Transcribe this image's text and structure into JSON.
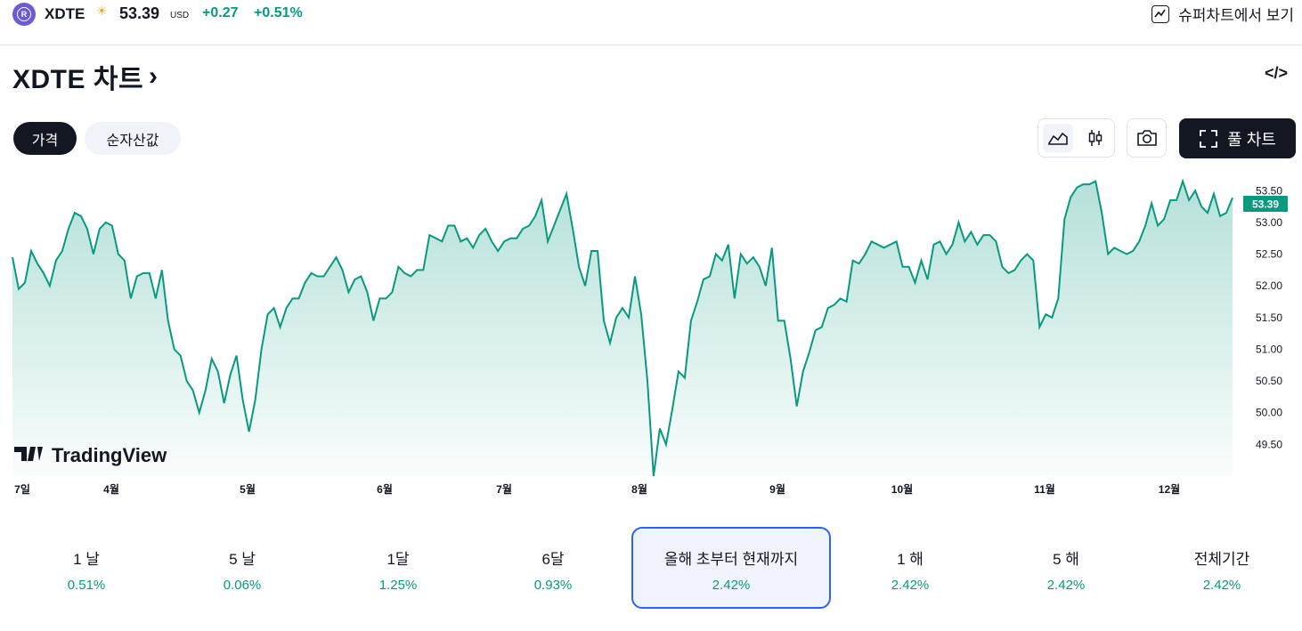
{
  "header": {
    "logo_letter": "R",
    "ticker": "XDTE",
    "session_icon": "sun-icon",
    "price": "53.39",
    "currency": "USD",
    "change": "+0.27",
    "change_pct": "+0.51%",
    "supercharts_label": "슈퍼차트에서 보기"
  },
  "title": {
    "text": "XDTE 차트",
    "chevron": "›",
    "embed_label": "</>"
  },
  "tabs": [
    {
      "label": "가격",
      "active": true
    },
    {
      "label": "순자산값",
      "active": false
    }
  ],
  "toolbar": {
    "fullchart_label": "풀 차트",
    "line_icon": "area-chart-icon",
    "candle_icon": "candlestick-icon",
    "camera_icon": "camera-icon"
  },
  "colors": {
    "accent": "#089981",
    "dark": "#131722",
    "selected_border": "#2962ff"
  },
  "chart_data": {
    "type": "area",
    "watermark": "TradingView",
    "last_value_label": "53.39",
    "ylim": [
      49.0,
      53.7
    ],
    "y_ticks": [
      "53.50",
      "53.00",
      "52.50",
      "52.00",
      "51.50",
      "51.00",
      "50.50",
      "50.00",
      "49.50"
    ],
    "x_ticks": [
      "7일",
      "4월",
      "5월",
      "6월",
      "7월",
      "8월",
      "9월",
      "10월",
      "11월",
      "12월"
    ],
    "values": [
      52.45,
      51.95,
      52.05,
      52.55,
      52.35,
      52.2,
      52.0,
      52.4,
      52.55,
      52.9,
      53.15,
      53.1,
      52.9,
      52.5,
      52.9,
      53.0,
      52.95,
      52.5,
      52.4,
      51.8,
      52.15,
      52.2,
      52.2,
      51.8,
      52.25,
      51.45,
      51.0,
      50.9,
      50.5,
      50.35,
      50.0,
      50.35,
      50.85,
      50.65,
      50.15,
      50.6,
      50.9,
      50.2,
      49.7,
      50.2,
      51.0,
      51.55,
      51.65,
      51.35,
      51.65,
      51.8,
      51.8,
      52.05,
      52.2,
      52.15,
      52.15,
      52.3,
      52.45,
      52.25,
      51.9,
      52.1,
      52.15,
      51.9,
      51.45,
      51.8,
      51.8,
      51.9,
      52.3,
      52.2,
      52.15,
      52.25,
      52.25,
      52.8,
      52.75,
      52.7,
      52.95,
      52.95,
      52.7,
      52.75,
      52.6,
      52.8,
      52.9,
      52.7,
      52.55,
      52.7,
      52.75,
      52.75,
      52.9,
      52.95,
      53.1,
      53.35,
      52.7,
      52.95,
      53.2,
      53.45,
      52.9,
      52.3,
      52.0,
      52.55,
      52.55,
      51.45,
      51.1,
      51.5,
      51.65,
      51.5,
      52.15,
      51.55,
      50.5,
      49.0,
      49.75,
      49.5,
      50.05,
      50.65,
      50.55,
      51.45,
      51.75,
      52.1,
      52.15,
      52.5,
      52.4,
      52.65,
      51.8,
      52.5,
      52.35,
      52.45,
      52.3,
      52.0,
      52.6,
      51.45,
      51.45,
      50.85,
      50.1,
      50.65,
      50.95,
      51.3,
      51.35,
      51.65,
      51.7,
      51.8,
      51.75,
      52.4,
      52.35,
      52.5,
      52.7,
      52.65,
      52.6,
      52.65,
      52.7,
      52.3,
      52.3,
      52.05,
      52.4,
      52.1,
      52.65,
      52.7,
      52.5,
      52.65,
      53.0,
      52.7,
      52.85,
      52.65,
      52.8,
      52.8,
      52.7,
      52.3,
      52.2,
      52.25,
      52.4,
      52.5,
      52.4,
      51.35,
      51.55,
      51.5,
      51.8,
      53.05,
      53.4,
      53.55,
      53.6,
      53.6,
      53.65,
      53.15,
      52.5,
      52.6,
      52.55,
      52.5,
      52.55,
      52.7,
      52.95,
      53.3,
      52.95,
      53.05,
      53.35,
      53.35,
      53.65,
      53.35,
      53.5,
      53.25,
      53.15,
      53.45,
      53.1,
      53.15,
      53.39
    ]
  },
  "performance": [
    {
      "label": "1 날",
      "value": "0.51%",
      "selected": false
    },
    {
      "label": "5 날",
      "value": "0.06%",
      "selected": false
    },
    {
      "label": "1달",
      "value": "1.25%",
      "selected": false
    },
    {
      "label": "6달",
      "value": "0.93%",
      "selected": false
    },
    {
      "label": "올해 초부터 현재까지",
      "value": "2.42%",
      "selected": true
    },
    {
      "label": "1 해",
      "value": "2.42%",
      "selected": false
    },
    {
      "label": "5 해",
      "value": "2.42%",
      "selected": false
    },
    {
      "label": "전체기간",
      "value": "2.42%",
      "selected": false
    }
  ]
}
